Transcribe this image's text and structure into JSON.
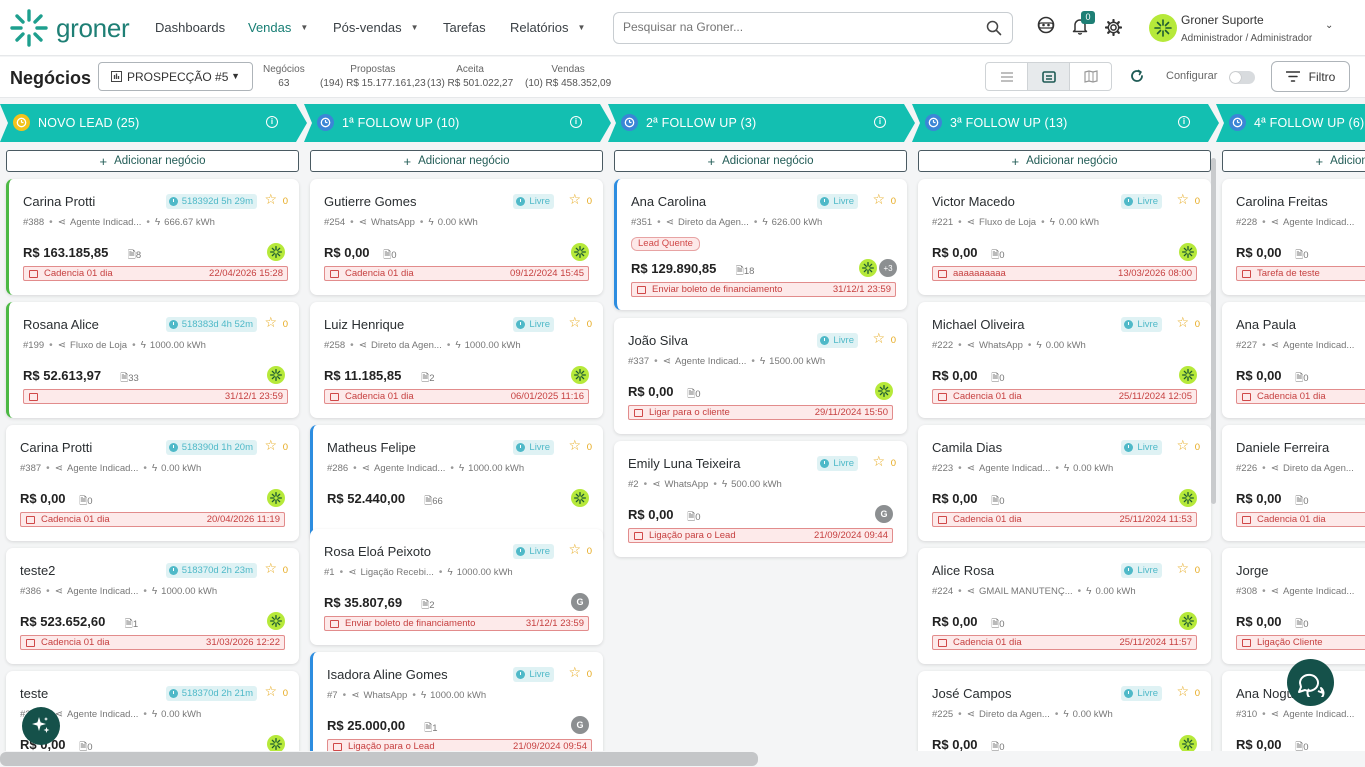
{
  "brand": {
    "name": "groner",
    "color": "#1e7f75"
  },
  "nav": [
    {
      "label": "Dashboards",
      "chevron": false,
      "active": false
    },
    {
      "label": "Vendas",
      "chevron": true,
      "active": true
    },
    {
      "label": "Pós-vendas",
      "chevron": true,
      "active": false
    },
    {
      "label": "Tarefas",
      "chevron": false,
      "active": false
    },
    {
      "label": "Relatórios",
      "chevron": true,
      "active": false
    }
  ],
  "search": {
    "placeholder": "Pesquisar na Groner..."
  },
  "notifications": {
    "count": "0"
  },
  "user": {
    "name": "Groner Suporte",
    "role": "Administrador / Administrador"
  },
  "toolbar": {
    "title": "Negócios",
    "pipeline": "PROSPECÇÃO #5",
    "stats": [
      {
        "label": "Negócios",
        "value": "63"
      },
      {
        "label": "Propostas",
        "value": "(194) R$ 15.177.161,23"
      },
      {
        "label": "Aceita",
        "value": "(13) R$ 501.022,27"
      },
      {
        "label": "Vendas",
        "value": "(10) R$ 458.352,09"
      }
    ],
    "configure_label": "Configurar",
    "filter_label": "Filtro",
    "add_label": "Adicionar negócio"
  },
  "columns": [
    {
      "title": "NOVO LEAD (25)",
      "icon_color": "#f2c31b",
      "cards": [
        {
          "name": "Carina Protti",
          "tag": "518392d 5h 29m",
          "stars": "0",
          "id": "#388",
          "source": "Agente Indicad...",
          "energy": "666.67 kWh",
          "value": "R$ 163.185,85",
          "docs": "8",
          "avatar": "lime",
          "task": "Cadencia 01 dia",
          "date": "22/04/2026 15:28",
          "border": "green"
        },
        {
          "name": "Rosana Alice",
          "tag": "518383d 4h 52m",
          "stars": "0",
          "id": "#199",
          "source": "Fluxo de Loja",
          "energy": "1000.00 kWh",
          "value": "R$ 52.613,97",
          "docs": "33",
          "avatar": "lime",
          "task": "",
          "date": "31/12/1 23:59",
          "border": "green"
        },
        {
          "name": "Carina Protti",
          "tag": "518390d 1h 20m",
          "stars": "0",
          "id": "#387",
          "source": "Agente Indicad...",
          "energy": "0.00 kWh",
          "value": "R$ 0,00",
          "docs": "0",
          "avatar": "lime",
          "task": "Cadencia 01 dia",
          "date": "20/04/2026 11:19",
          "border": "none"
        },
        {
          "name": "teste2",
          "tag": "518370d 2h 23m",
          "stars": "0",
          "id": "#386",
          "source": "Agente Indicad...",
          "energy": "1000.00 kWh",
          "value": "R$ 523.652,60",
          "docs": "1",
          "avatar": "lime",
          "task": "Cadencia 01 dia",
          "date": "31/03/2026 12:22",
          "border": "none"
        },
        {
          "name": "teste",
          "tag": "518370d 2h 21m",
          "stars": "0",
          "id": "#385",
          "source": "Agente Indicad...",
          "energy": "0.00 kWh",
          "value": "R$ 0,00",
          "docs": "0",
          "avatar": "lime",
          "task": "",
          "date": "",
          "border": "none"
        }
      ]
    },
    {
      "title": "1ª FOLLOW UP (10)",
      "icon_color": "#3b86d6",
      "cards": [
        {
          "name": "Gutierre Gomes",
          "tag": "Livre",
          "stars": "0",
          "id": "#254",
          "source": "WhatsApp",
          "energy": "0.00 kWh",
          "value": "R$ 0,00",
          "docs": "0",
          "avatar": "lime",
          "task": "Cadencia 01 dia",
          "date": "09/12/2024 15:45",
          "border": "none"
        },
        {
          "name": "Luiz Henrique",
          "tag": "Livre",
          "stars": "0",
          "id": "#258",
          "source": "Direto da Agen...",
          "energy": "1000.00 kWh",
          "value": "R$ 11.185,85",
          "docs": "2",
          "avatar": "lime",
          "task": "Cadencia 01 dia",
          "date": "06/01/2025 11:16",
          "border": "none"
        },
        {
          "name": "Matheus Felipe",
          "tag": "Livre",
          "stars": "0",
          "id": "#286",
          "source": "Agente Indicad...",
          "energy": "1000.00 kWh",
          "value": "R$ 52.440,00",
          "docs": "66",
          "avatar": "lime",
          "task": "",
          "date": "",
          "border": "blue"
        },
        {
          "name": "Rosa Eloá Peixoto",
          "tag": "Livre",
          "stars": "0",
          "id": "#1",
          "source": "Ligação Recebi...",
          "energy": "1000.00 kWh",
          "value": "R$ 35.807,69",
          "docs": "2",
          "avatar": "G",
          "task": "Enviar boleto de financiamento",
          "date": "31/12/1 23:59",
          "border": "none"
        },
        {
          "name": "Isadora Aline Gomes",
          "tag": "Livre",
          "stars": "0",
          "id": "#7",
          "source": "WhatsApp",
          "energy": "1000.00 kWh",
          "value": "R$ 25.000,00",
          "docs": "1",
          "avatar": "G",
          "task": "Ligação para o Lead",
          "date": "21/09/2024 09:54",
          "border": "blue"
        }
      ]
    },
    {
      "title": "2ª FOLLOW UP (3)",
      "icon_color": "#3b86d6",
      "cards": [
        {
          "name": "Ana Carolina",
          "tag": "Livre",
          "stars": "0",
          "id": "#351",
          "source": "Direto da Agen...",
          "energy": "626.00 kWh",
          "label": "Lead Quente",
          "value": "R$ 129.890,85",
          "docs": "18",
          "avatar": "lime",
          "more": "+3",
          "task": "Enviar boleto de financiamento",
          "date": "31/12/1 23:59",
          "border": "blue"
        },
        {
          "name": "João Silva",
          "tag": "Livre",
          "stars": "0",
          "id": "#337",
          "source": "Agente Indicad...",
          "energy": "1500.00 kWh",
          "value": "R$ 0,00",
          "docs": "0",
          "avatar": "lime",
          "task": "Ligar para o cliente",
          "date": "29/11/2024 15:50",
          "border": "none"
        },
        {
          "name": "Emily Luna Teixeira",
          "tag": "Livre",
          "stars": "0",
          "id": "#2",
          "source": "WhatsApp",
          "energy": "500.00 kWh",
          "value": "R$ 0,00",
          "docs": "0",
          "avatar": "G",
          "task": "Ligação para o Lead",
          "date": "21/09/2024 09:44",
          "border": "none"
        }
      ]
    },
    {
      "title": "3ª FOLLOW UP (13)",
      "icon_color": "#3b86d6",
      "cards": [
        {
          "name": "Victor Macedo",
          "tag": "Livre",
          "stars": "0",
          "id": "#221",
          "source": "Fluxo de Loja",
          "energy": "0.00 kWh",
          "value": "R$ 0,00",
          "docs": "0",
          "avatar": "lime",
          "task": "aaaaaaaaaa",
          "date": "13/03/2026 08:00",
          "border": "none"
        },
        {
          "name": "Michael Oliveira",
          "tag": "Livre",
          "stars": "0",
          "id": "#222",
          "source": "WhatsApp",
          "energy": "0.00 kWh",
          "value": "R$ 0,00",
          "docs": "0",
          "avatar": "lime",
          "task": "Cadencia 01 dia",
          "date": "25/11/2024 12:05",
          "border": "none"
        },
        {
          "name": "Camila Dias",
          "tag": "Livre",
          "stars": "0",
          "id": "#223",
          "source": "Agente Indicad...",
          "energy": "0.00 kWh",
          "value": "R$ 0,00",
          "docs": "0",
          "avatar": "lime",
          "task": "Cadencia 01 dia",
          "date": "25/11/2024 11:53",
          "border": "none"
        },
        {
          "name": "Alice Rosa",
          "tag": "Livre",
          "stars": "0",
          "id": "#224",
          "source": "GMAIL MANUTENÇ...",
          "energy": "0.00 kWh",
          "value": "R$ 0,00",
          "docs": "0",
          "avatar": "lime",
          "task": "Cadencia 01 dia",
          "date": "25/11/2024 11:57",
          "border": "none"
        },
        {
          "name": "José Campos",
          "tag": "Livre",
          "stars": "0",
          "id": "#225",
          "source": "Direto da Agen...",
          "energy": "0.00 kWh",
          "value": "R$ 0,00",
          "docs": "0",
          "avatar": "lime",
          "task": "",
          "date": "",
          "border": "none"
        }
      ]
    },
    {
      "title": "4ª FOLLOW UP (6)",
      "icon_color": "#3b86d6",
      "cards": [
        {
          "name": "Carolina Freitas",
          "tag": "",
          "stars": "",
          "id": "#228",
          "source": "Agente Indicad...",
          "energy": "",
          "value": "R$ 0,00",
          "docs": "0",
          "avatar": "",
          "task": "Tarefa de teste",
          "date": "",
          "border": "none"
        },
        {
          "name": "Ana Paula",
          "tag": "",
          "stars": "",
          "id": "#227",
          "source": "Agente Indicad...",
          "energy": "",
          "value": "R$ 0,00",
          "docs": "0",
          "avatar": "",
          "task": "Cadencia 01 dia",
          "date": "",
          "border": "none"
        },
        {
          "name": "Daniele Ferreira",
          "tag": "",
          "stars": "",
          "id": "#226",
          "source": "Direto da Agen...",
          "energy": "",
          "value": "R$ 0,00",
          "docs": "0",
          "avatar": "",
          "task": "Cadencia 01 dia",
          "date": "",
          "border": "none"
        },
        {
          "name": "Jorge",
          "tag": "",
          "stars": "",
          "id": "#308",
          "source": "Agente Indicad...",
          "energy": "",
          "value": "R$ 0,00",
          "docs": "0",
          "avatar": "",
          "task": "Ligação Cliente",
          "date": "",
          "border": "none"
        },
        {
          "name": "Ana Nogu...",
          "tag": "",
          "stars": "",
          "id": "#310",
          "source": "Agente Indicad...",
          "energy": "",
          "value": "R$ 0,00",
          "docs": "0",
          "avatar": "",
          "task": "",
          "date": "",
          "border": "none"
        }
      ]
    }
  ]
}
